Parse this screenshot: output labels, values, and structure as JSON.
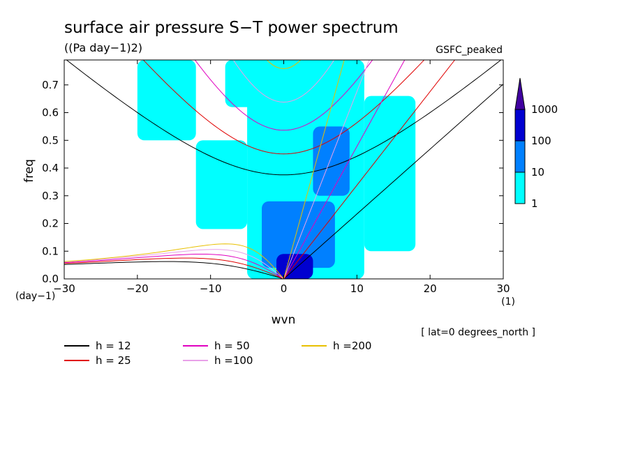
{
  "chart_data": {
    "type": "heatmap",
    "title": "surface air pressure S−T power spectrum",
    "units": "((Pa day−1)2)",
    "model_tag": "GSFC_peaked",
    "xlabel": "wvn",
    "xunit": "(1)",
    "ylabel": "freq",
    "yunit": "(day−1)",
    "xlim": [
      -30,
      30
    ],
    "ylim": [
      0,
      0.79
    ],
    "xticks": [
      {
        "value": -30,
        "label": "−30"
      },
      {
        "value": -20,
        "label": "−20"
      },
      {
        "value": -10,
        "label": "−10"
      },
      {
        "value": 0,
        "label": "0"
      },
      {
        "value": 10,
        "label": "10"
      },
      {
        "value": 20,
        "label": "20"
      },
      {
        "value": 30,
        "label": "30"
      }
    ],
    "yticks": [
      {
        "value": 0.0,
        "label": "0.0"
      },
      {
        "value": 0.1,
        "label": "0.1"
      },
      {
        "value": 0.2,
        "label": "0.2"
      },
      {
        "value": 0.3,
        "label": "0.3"
      },
      {
        "value": 0.4,
        "label": "0.4"
      },
      {
        "value": 0.5,
        "label": "0.5"
      },
      {
        "value": 0.6,
        "label": "0.6"
      },
      {
        "value": 0.7,
        "label": "0.7"
      }
    ],
    "colorbar": {
      "levels": [
        {
          "value": 1,
          "label": "1",
          "color": "#00ffff"
        },
        {
          "value": 10,
          "label": "10",
          "color": "#0080ff"
        },
        {
          "value": 100,
          "label": "100",
          "color": "#0000d0"
        },
        {
          "value": 1000,
          "label": "1000",
          "color": "#4000a0"
        }
      ]
    },
    "spectrum_regions": [
      {
        "level": 1,
        "x": [
          -5,
          11
        ],
        "y": [
          0.0,
          0.79
        ]
      },
      {
        "level": 1,
        "x": [
          -12,
          -5
        ],
        "y": [
          0.18,
          0.5
        ]
      },
      {
        "level": 1,
        "x": [
          11,
          18
        ],
        "y": [
          0.1,
          0.66
        ]
      },
      {
        "level": 1,
        "x": [
          -20,
          -12
        ],
        "y": [
          0.5,
          0.79
        ]
      },
      {
        "level": 1,
        "x": [
          -8,
          4
        ],
        "y": [
          0.62,
          0.79
        ]
      },
      {
        "level": 1,
        "x": [
          4,
          11
        ],
        "y": [
          0.66,
          0.79
        ]
      },
      {
        "level": 1,
        "x": [
          -4,
          0
        ],
        "y": [
          0.0,
          0.14
        ]
      },
      {
        "level": 10,
        "x": [
          -3,
          7
        ],
        "y": [
          0.04,
          0.28
        ]
      },
      {
        "level": 10,
        "x": [
          4,
          9
        ],
        "y": [
          0.3,
          0.55
        ]
      },
      {
        "level": 100,
        "x": [
          -1,
          4
        ],
        "y": [
          0.0,
          0.09
        ]
      }
    ],
    "reference_lines": [
      {
        "name": "h = 12",
        "color": "#000000"
      },
      {
        "name": "h = 25",
        "color": "#e00000"
      },
      {
        "name": "h = 50",
        "color": "#e000c0"
      },
      {
        "name": "h =100",
        "color": "#e8a0e8"
      },
      {
        "name": "h =200",
        "color": "#e8c000"
      }
    ],
    "annotation": "[ lat=0 degrees_north ]"
  }
}
